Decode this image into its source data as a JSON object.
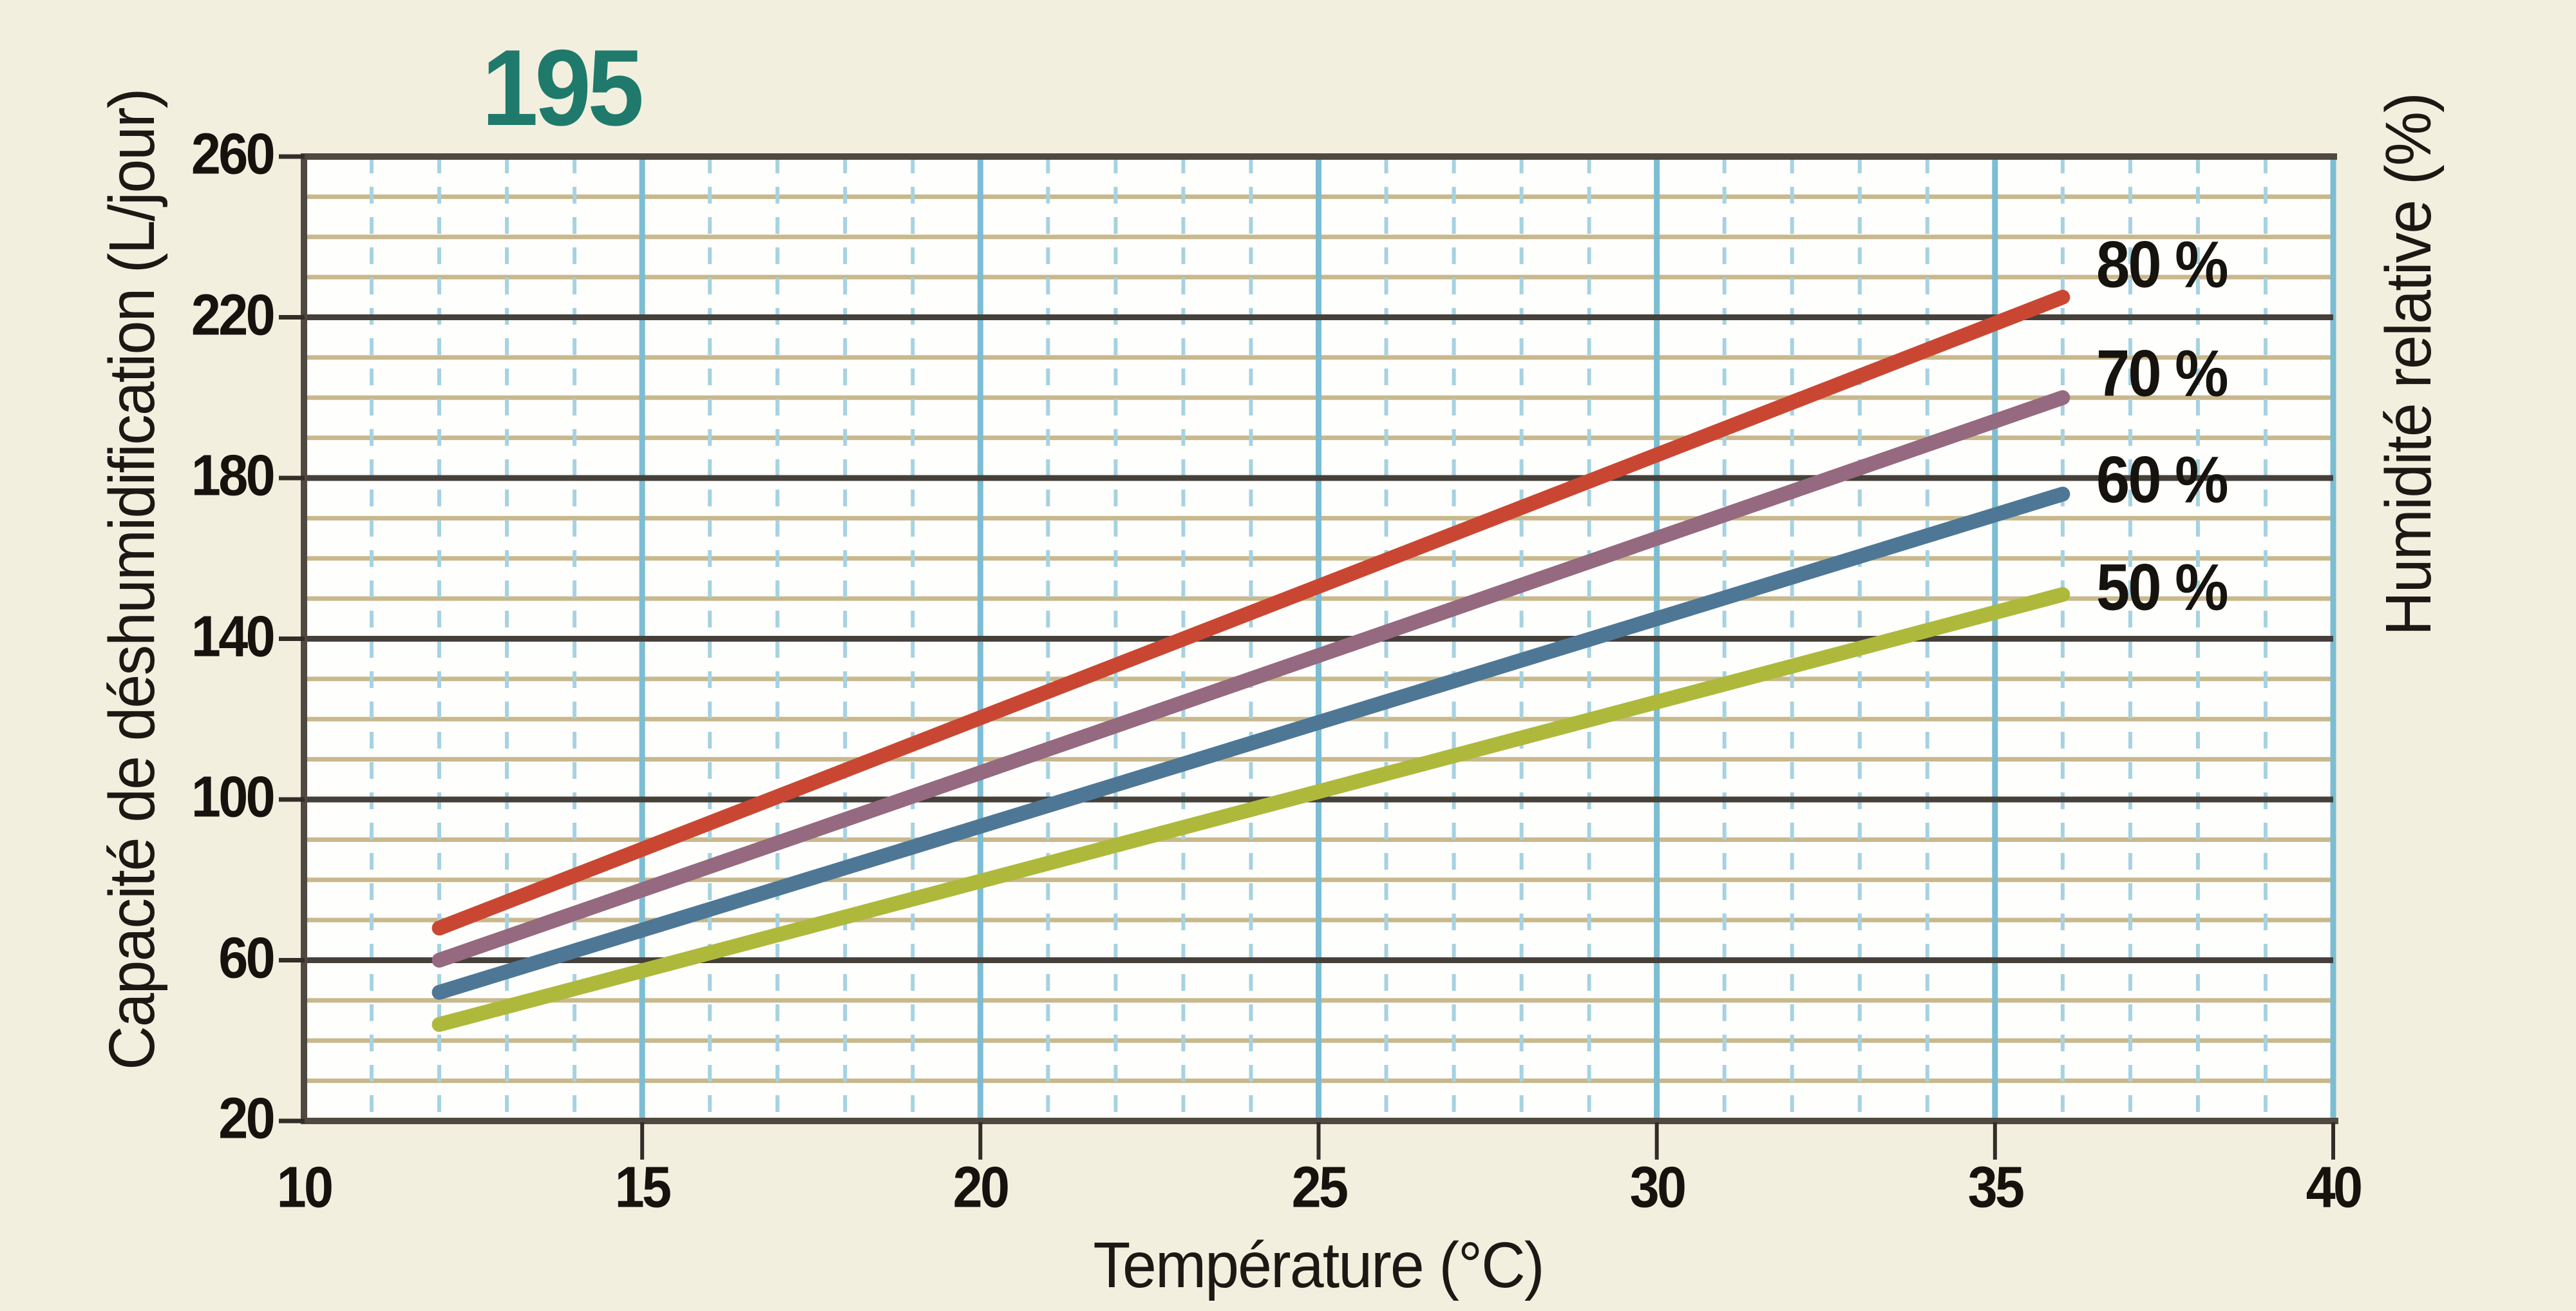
{
  "title": {
    "text": "195",
    "color": "#1f7a6c"
  },
  "colors": {
    "background": "#f3efdf",
    "plot_background": "#fefefd",
    "frame": "#4f4941",
    "grid_minor_horizontal": "#c8b88c",
    "grid_major_horizontal": "#45403a",
    "grid_minor_vertical": "#a6d2e1",
    "grid_major_vertical": "#7cbdd3",
    "tick": "#332d28",
    "text": "#16130e"
  },
  "chart_data": {
    "type": "line",
    "title": "195",
    "xlabel": "Température (°C)",
    "ylabel": "Capacité de déshumidification (L/jour)",
    "ylabel_right": "Humidité relative (%)",
    "xlim": [
      10,
      40
    ],
    "ylim": [
      20,
      260
    ],
    "x_ticks": [
      10,
      15,
      20,
      25,
      30,
      35,
      40
    ],
    "y_ticks": [
      20,
      60,
      100,
      140,
      180,
      220,
      260
    ],
    "x_minor_step": 1,
    "y_minor_step": 10,
    "grid": "on",
    "legend_position": "labels-at-line-ends-right",
    "series": [
      {
        "name": "80 %",
        "relative_humidity_pct": 80,
        "color": "#c94732",
        "points": [
          [
            12,
            68
          ],
          [
            36,
            225
          ]
        ],
        "label_at_y": 233
      },
      {
        "name": "70 %",
        "relative_humidity_pct": 70,
        "color": "#95697f",
        "points": [
          [
            12,
            60
          ],
          [
            36,
            200
          ]
        ],
        "label_at_y": 206
      },
      {
        "name": "60 %",
        "relative_humidity_pct": 60,
        "color": "#4e7795",
        "points": [
          [
            12,
            52
          ],
          [
            36,
            176
          ]
        ],
        "label_at_y": 179.5
      },
      {
        "name": "50 %",
        "relative_humidity_pct": 50,
        "color": "#aeb93b",
        "points": [
          [
            12,
            44
          ],
          [
            36,
            151
          ]
        ],
        "label_at_y": 152.7
      }
    ]
  }
}
